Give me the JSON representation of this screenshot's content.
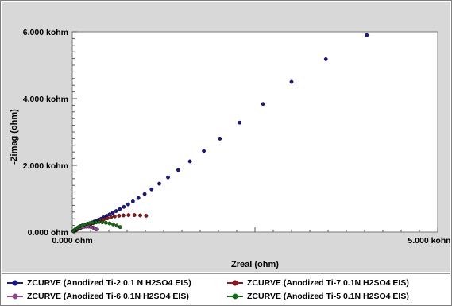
{
  "chart_data": {
    "type": "scatter",
    "title": "",
    "xlabel": "Zreal (ohm)",
    "ylabel": "-Zimag (ohm)",
    "xlim": [
      0,
      5000
    ],
    "ylim": [
      0,
      6000
    ],
    "x_ticks": [
      {
        "value": 0,
        "label": "0.000 ohm"
      },
      {
        "value": 5000,
        "label": "5.000 kohm"
      }
    ],
    "y_ticks": [
      {
        "value": 0,
        "label": "0.000 ohm"
      },
      {
        "value": 2000,
        "label": "2.000 kohm"
      },
      {
        "value": 4000,
        "label": "4.000 kohm"
      },
      {
        "value": 6000,
        "label": "6.000 kohm"
      }
    ],
    "grid": false,
    "legend_position": "bottom",
    "series": [
      {
        "name": "ZCURVE (Anodized Ti-2 0.1 N H2SO4 EIS)",
        "color": "#1a1a8c",
        "points": [
          [
            20,
            20
          ],
          [
            40,
            45
          ],
          [
            60,
            70
          ],
          [
            80,
            95
          ],
          [
            100,
            120
          ],
          [
            125,
            145
          ],
          [
            150,
            170
          ],
          [
            175,
            195
          ],
          [
            200,
            215
          ],
          [
            225,
            240
          ],
          [
            250,
            265
          ],
          [
            275,
            290
          ],
          [
            300,
            315
          ],
          [
            330,
            340
          ],
          [
            360,
            370
          ],
          [
            395,
            400
          ],
          [
            430,
            440
          ],
          [
            470,
            485
          ],
          [
            510,
            530
          ],
          [
            555,
            580
          ],
          [
            600,
            630
          ],
          [
            650,
            690
          ],
          [
            705,
            755
          ],
          [
            765,
            830
          ],
          [
            830,
            920
          ],
          [
            905,
            1020
          ],
          [
            990,
            1140
          ],
          [
            1085,
            1280
          ],
          [
            1190,
            1450
          ],
          [
            1310,
            1640
          ],
          [
            1450,
            1860
          ],
          [
            1610,
            2120
          ],
          [
            1800,
            2430
          ],
          [
            2020,
            2800
          ],
          [
            2290,
            3280
          ],
          [
            2610,
            3840
          ],
          [
            3000,
            4500
          ],
          [
            3470,
            5180
          ],
          [
            4030,
            5900
          ]
        ]
      },
      {
        "name": "ZCURVE (Anodized Ti-7 0.1N H2SO4 EIS)",
        "color": "#8c1a1a",
        "points": [
          [
            20,
            20
          ],
          [
            40,
            45
          ],
          [
            60,
            70
          ],
          [
            85,
            95
          ],
          [
            110,
            120
          ],
          [
            140,
            150
          ],
          [
            170,
            175
          ],
          [
            205,
            200
          ],
          [
            245,
            230
          ],
          [
            285,
            265
          ],
          [
            330,
            300
          ],
          [
            380,
            340
          ],
          [
            430,
            380
          ],
          [
            480,
            415
          ],
          [
            530,
            445
          ],
          [
            580,
            470
          ],
          [
            640,
            490
          ],
          [
            700,
            500
          ],
          [
            770,
            510
          ],
          [
            850,
            510
          ],
          [
            930,
            500
          ],
          [
            1010,
            490
          ]
        ]
      },
      {
        "name": "ZCURVE (Anodized Ti-6 0.1N H2SO4 EIS)",
        "color": "#8c4a8c",
        "points": [
          [
            15,
            25
          ],
          [
            30,
            50
          ],
          [
            45,
            75
          ],
          [
            65,
            100
          ],
          [
            85,
            120
          ],
          [
            110,
            135
          ],
          [
            135,
            150
          ],
          [
            165,
            160
          ],
          [
            195,
            165
          ],
          [
            225,
            165
          ],
          [
            255,
            155
          ],
          [
            285,
            135
          ],
          [
            310,
            110
          ],
          [
            330,
            80
          ]
        ]
      },
      {
        "name": "ZCURVE (Anodized Ti-5  0.1N H2SO4 EIS)",
        "color": "#1a6b1a",
        "points": [
          [
            15,
            30
          ],
          [
            30,
            60
          ],
          [
            45,
            90
          ],
          [
            65,
            120
          ],
          [
            85,
            150
          ],
          [
            110,
            180
          ],
          [
            140,
            205
          ],
          [
            170,
            230
          ],
          [
            205,
            250
          ],
          [
            240,
            270
          ],
          [
            280,
            285
          ],
          [
            320,
            295
          ],
          [
            365,
            300
          ],
          [
            410,
            295
          ],
          [
            460,
            280
          ],
          [
            510,
            260
          ],
          [
            560,
            230
          ],
          [
            610,
            195
          ],
          [
            655,
            150
          ]
        ]
      }
    ]
  }
}
